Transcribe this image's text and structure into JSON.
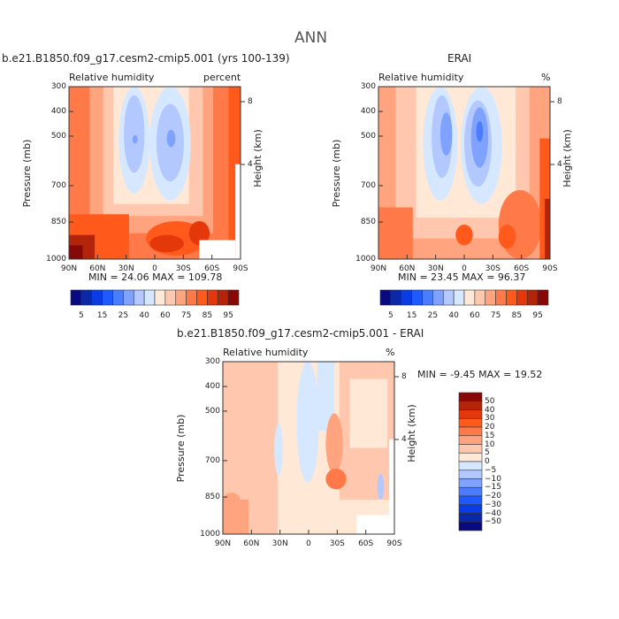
{
  "figure_title": "ANN",
  "chart_data": [
    {
      "type": "heatmap",
      "title": "b.e21.B1850.f09_g17.cesm2-cmip5.001 (yrs 100-139)",
      "left_label": "Relative humidity",
      "right_label": "percent",
      "ylabel": "Pressure (mb)",
      "y2label": "Height (km)",
      "yticks": [
        "300",
        "400",
        "500",
        "700",
        "850",
        "1000"
      ],
      "y2ticks": [
        "8",
        "4"
      ],
      "xticks": [
        "90N",
        "60N",
        "30N",
        "0",
        "30S",
        "60S",
        "90S"
      ],
      "min_label": "MIN =   24.06   MAX = 109.78",
      "colorbar_labels": [
        "5",
        "15",
        "25",
        "40",
        "60",
        "75",
        "85",
        "95"
      ]
    },
    {
      "type": "heatmap",
      "title": "ERAI",
      "left_label": "Relative humidity",
      "right_label": "%",
      "ylabel": "Pressure (mb)",
      "y2label": "Height (km)",
      "yticks": [
        "300",
        "400",
        "500",
        "700",
        "850",
        "1000"
      ],
      "y2ticks": [
        "8",
        "4"
      ],
      "xticks": [
        "90N",
        "60N",
        "30N",
        "0",
        "30S",
        "60S",
        "90S"
      ],
      "min_label": "MIN =   23.45   MAX =  96.37",
      "colorbar_labels": [
        "5",
        "15",
        "25",
        "40",
        "60",
        "75",
        "85",
        "95"
      ]
    },
    {
      "type": "heatmap",
      "title": "b.e21.B1850.f09_g17.cesm2-cmip5.001 - ERAI",
      "left_label": "Relative humidity",
      "right_label": "%",
      "ylabel": "Pressure (mb)",
      "y2label": "Height (km)",
      "yticks": [
        "300",
        "400",
        "500",
        "700",
        "850",
        "1000"
      ],
      "y2ticks": [
        "8",
        "4"
      ],
      "xticks": [
        "90N",
        "60N",
        "30N",
        "0",
        "30S",
        "60S",
        "90S"
      ],
      "min_label": "MIN =   -9.45   MAX =  19.52",
      "colorbar_labels": [
        "50",
        "40",
        "30",
        "20",
        "15",
        "10",
        "5",
        "0",
        "−5",
        "−10",
        "−15",
        "−20",
        "−30",
        "−40",
        "−50"
      ]
    }
  ],
  "colors": [
    "#0a0a80",
    "#0a28a8",
    "#0a3ce6",
    "#1e5aff",
    "#4a7cff",
    "#80a2ff",
    "#b2c8ff",
    "#d6e8ff",
    "#ffe8d6",
    "#ffc8ae",
    "#ffa47e",
    "#ff7a48",
    "#ff5a1c",
    "#e4380a",
    "#b4240a",
    "#880808"
  ]
}
